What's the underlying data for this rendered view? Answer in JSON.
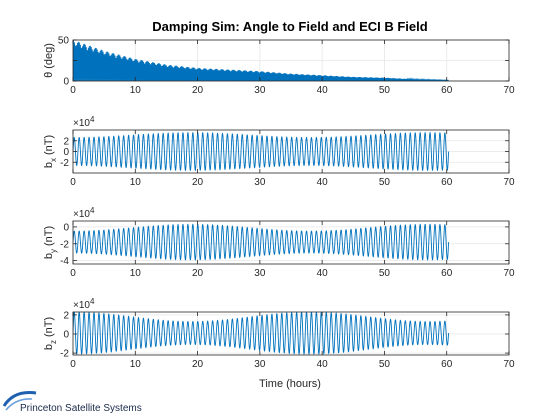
{
  "figure": {
    "title": "Damping Sim: Angle to Field and ECI B Field",
    "xlabel": "Time (hours)",
    "brand_text": "Princeton Satellite Systems"
  },
  "chart_data": [
    {
      "type": "line",
      "ylabel": "θ (deg)",
      "xlim": [
        0,
        70
      ],
      "ylim": [
        0,
        50
      ],
      "xticks": [
        0,
        10,
        20,
        30,
        40,
        50,
        60,
        70
      ],
      "yticks": [
        0,
        25,
        50
      ],
      "yticklabels": [
        "0",
        "",
        "50"
      ],
      "grid": true,
      "x_end": 60.3,
      "envelope": {
        "x": [
          0,
          2,
          5,
          10,
          15,
          20,
          25,
          30,
          35,
          40,
          45,
          50,
          55,
          60
        ],
        "y": [
          50,
          45,
          37,
          27,
          20,
          16,
          14,
          12,
          9,
          7,
          5,
          4,
          2,
          1
        ]
      },
      "color": "#0072BD"
    },
    {
      "type": "line",
      "ylabel": "b_x (nT)",
      "ylabel_main": "b",
      "ylabel_sub": "x",
      "ylabel_tail": " (nT)",
      "multiplier": "×10",
      "exponent": "4",
      "xlim": [
        0,
        70
      ],
      "ylim": [
        -4,
        4
      ],
      "xticks": [
        0,
        10,
        20,
        30,
        40,
        50,
        60,
        70
      ],
      "yticks": [
        -2,
        0,
        2
      ],
      "yticklabels": [
        "-2",
        "0",
        "2"
      ],
      "grid": true,
      "x_end": 60.3,
      "oscillation": {
        "center": 0,
        "amplitude_min": 2.6,
        "amplitude_max": 3.5,
        "modulation_period_hours": 38,
        "modulation_peak_hour": 19,
        "cycles": 76
      },
      "color": "#0072BD"
    },
    {
      "type": "line",
      "ylabel": "b_y (nT)",
      "ylabel_main": "b",
      "ylabel_sub": "y",
      "ylabel_tail": " (nT)",
      "multiplier": "×10",
      "exponent": "4",
      "xlim": [
        0,
        70
      ],
      "ylim": [
        -4.4,
        0.7
      ],
      "xticks": [
        0,
        10,
        20,
        30,
        40,
        50,
        60,
        70
      ],
      "yticks": [
        -4,
        -2,
        0
      ],
      "yticklabels": [
        "-4",
        "-2",
        "0"
      ],
      "grid": true,
      "x_end": 60.3,
      "oscillation": {
        "center": -1.8,
        "amplitude_min": 1.3,
        "amplitude_max": 2.1,
        "modulation_period_hours": 38,
        "modulation_peak_hour": 19,
        "cycles": 76
      },
      "color": "#0072BD"
    },
    {
      "type": "line",
      "ylabel": "b_z (nT)",
      "ylabel_main": "b",
      "ylabel_sub": "z",
      "ylabel_tail": " (nT)",
      "multiplier": "×10",
      "exponent": "4",
      "xlim": [
        0,
        70
      ],
      "ylim": [
        -2.2,
        2.3
      ],
      "xticks": [
        0,
        10,
        20,
        30,
        40,
        50,
        60,
        70
      ],
      "yticks": [
        -2,
        0,
        2
      ],
      "yticklabels": [
        "-2",
        "0",
        "2"
      ],
      "grid": true,
      "x_end": 60.3,
      "oscillation": {
        "center": 0.1,
        "amplitude_min": 1.2,
        "amplitude_max": 2.2,
        "modulation_period_hours": 38,
        "modulation_peak_hour": 0,
        "cycles": 76
      },
      "color": "#0072BD"
    }
  ]
}
